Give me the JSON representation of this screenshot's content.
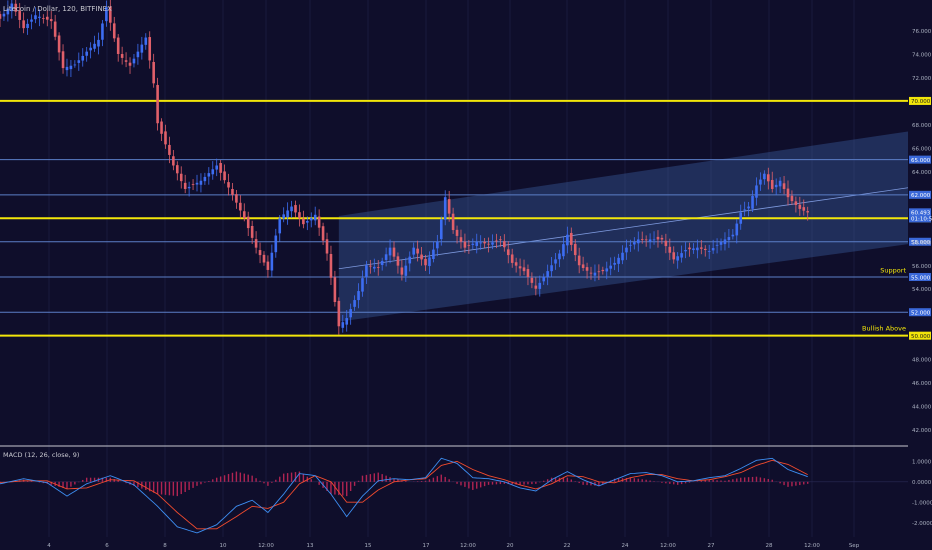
{
  "symbol_title": "Litecoin / Dollar, 120, BITFINEX",
  "colors": {
    "background": "#0f0e2b",
    "up": "#3d6df2",
    "down": "#e0606a",
    "hline_yellow": "#f2e60a",
    "hline_blue": "#5b7ec7",
    "channel_fill": "#3a5a9c",
    "macd_line": "#3d8ef2",
    "signal_line": "#f24b2e",
    "histogram": "#b02452"
  },
  "chart_data": [
    {
      "type": "candlestick",
      "title": "Litecoin / Dollar, 120, BITFINEX",
      "ylim": [
        40.6,
        78.6
      ],
      "price_ticks": [
        "76.000",
        "74.000",
        "72.000",
        "68.000",
        "66.000",
        "64.000",
        "58.000",
        "56.000",
        "54.000",
        "48.000",
        "46.000",
        "44.000",
        "42.000"
      ],
      "x_ticks": [
        "4",
        "6",
        "8",
        "10",
        "12:00",
        "13",
        "15",
        "17",
        "12:00",
        "20",
        "22",
        "24",
        "12:00",
        "27",
        "28",
        "12:00",
        "Sep"
      ],
      "horizontal_levels": [
        {
          "price": 70.0,
          "label": "70.000",
          "color": "yellow",
          "width": 2
        },
        {
          "price": 65.0,
          "label": "65.000",
          "color": "blue",
          "width": 1
        },
        {
          "price": 62.0,
          "label": "62.000",
          "color": "blue",
          "width": 1
        },
        {
          "price": 60.0,
          "label": "60.000",
          "color": "yellow",
          "width": 2
        },
        {
          "price": 58.0,
          "label": "58.000",
          "color": "blue",
          "width": 1
        },
        {
          "price": 55.0,
          "label": "55.000",
          "color": "blue",
          "width": 1
        },
        {
          "price": 52.0,
          "label": "52.000",
          "color": "blue",
          "width": 1
        },
        {
          "price": 50.0,
          "label": "50.000",
          "color": "yellow",
          "width": 2
        }
      ],
      "price_badges": [
        {
          "label": "60.493",
          "price": 60.51
        },
        {
          "label": "01:10:56",
          "price": 59.99
        }
      ],
      "annotations": [
        {
          "text": "Support",
          "price": 55.2
        },
        {
          "text": "Bullish Above",
          "price": 50.25
        }
      ],
      "channel": {
        "start_index": 86,
        "start_low": 51.2,
        "start_high": 60.2,
        "end_low": 57.8,
        "end_high": 67.4
      },
      "channel_midline": {
        "start_index": 86,
        "start_price": 55.7,
        "end_price": 62.6
      },
      "anchors": [
        [
          0,
          77.0
        ],
        [
          3,
          78.3
        ],
        [
          6,
          76.2
        ],
        [
          9,
          77.3
        ],
        [
          13,
          76.8
        ],
        [
          16,
          72.8
        ],
        [
          19,
          73.1
        ],
        [
          22,
          74.2
        ],
        [
          25,
          75.2
        ],
        [
          27,
          78.0
        ],
        [
          30,
          74.0
        ],
        [
          33,
          73.0
        ],
        [
          37,
          75.4
        ],
        [
          39,
          71.5
        ],
        [
          40,
          68.1
        ],
        [
          44,
          64.5
        ],
        [
          47,
          62.5
        ],
        [
          51,
          63.2
        ],
        [
          55,
          64.5
        ],
        [
          59,
          62.0
        ],
        [
          62,
          60.0
        ],
        [
          65,
          57.5
        ],
        [
          68,
          55.6
        ],
        [
          71,
          60.0
        ],
        [
          74,
          61.0
        ],
        [
          77,
          59.5
        ],
        [
          80,
          60.3
        ],
        [
          83,
          57.0
        ],
        [
          86,
          50.8
        ],
        [
          88,
          51.5
        ],
        [
          91,
          53.8
        ],
        [
          93,
          56.0
        ],
        [
          96,
          55.8
        ],
        [
          99,
          57.5
        ],
        [
          102,
          55.2
        ],
        [
          105,
          57.5
        ],
        [
          108,
          56.0
        ],
        [
          111,
          58.0
        ],
        [
          113,
          61.8
        ],
        [
          115,
          59.0
        ],
        [
          118,
          57.5
        ],
        [
          121,
          58.0
        ],
        [
          124,
          57.8
        ],
        [
          127,
          58.2
        ],
        [
          130,
          56.2
        ],
        [
          133,
          55.5
        ],
        [
          136,
          54.0
        ],
        [
          139,
          55.5
        ],
        [
          142,
          57.0
        ],
        [
          144,
          58.6
        ],
        [
          147,
          56.0
        ],
        [
          150,
          55.3
        ],
        [
          153,
          55.5
        ],
        [
          156,
          56.2
        ],
        [
          159,
          57.5
        ],
        [
          162,
          58.2
        ],
        [
          165,
          58.2
        ],
        [
          168,
          58.2
        ],
        [
          171,
          56.5
        ],
        [
          174,
          57.3
        ],
        [
          177,
          57.5
        ],
        [
          180,
          57.2
        ],
        [
          183,
          58.0
        ],
        [
          186,
          58.6
        ],
        [
          188,
          60.5
        ],
        [
          190,
          61.0
        ],
        [
          192,
          62.8
        ],
        [
          194,
          63.8
        ],
        [
          196,
          62.5
        ],
        [
          198,
          63.2
        ],
        [
          200,
          61.8
        ],
        [
          203,
          60.8
        ],
        [
          205,
          60.5
        ]
      ]
    },
    {
      "type": "line",
      "title": "MACD (12, 26, close, 9)",
      "ylim": [
        -2.7,
        1.75
      ],
      "y_ticks": [
        "1.0000",
        "-1.0000",
        "-2.0000"
      ],
      "zero_label": "0.0000",
      "series": [
        {
          "name": "MACD",
          "anchors": [
            [
              0,
              -0.1
            ],
            [
              6,
              0.15
            ],
            [
              12,
              -0.05
            ],
            [
              17,
              -0.7
            ],
            [
              22,
              -0.1
            ],
            [
              28,
              0.3
            ],
            [
              34,
              -0.15
            ],
            [
              40,
              -1.2
            ],
            [
              45,
              -2.2
            ],
            [
              50,
              -2.5
            ],
            [
              55,
              -2.1
            ],
            [
              60,
              -1.2
            ],
            [
              64,
              -0.9
            ],
            [
              68,
              -1.5
            ],
            [
              72,
              -0.6
            ],
            [
              76,
              0.4
            ],
            [
              80,
              0.3
            ],
            [
              84,
              -0.6
            ],
            [
              88,
              -1.7
            ],
            [
              92,
              -0.7
            ],
            [
              96,
              0.05
            ],
            [
              100,
              0.15
            ],
            [
              104,
              0.1
            ],
            [
              108,
              0.2
            ],
            [
              112,
              1.15
            ],
            [
              116,
              0.9
            ],
            [
              120,
              0.2
            ],
            [
              124,
              0.15
            ],
            [
              128,
              0.0
            ],
            [
              132,
              -0.3
            ],
            [
              136,
              -0.45
            ],
            [
              140,
              0.1
            ],
            [
              144,
              0.5
            ],
            [
              148,
              0.1
            ],
            [
              152,
              -0.2
            ],
            [
              156,
              0.1
            ],
            [
              160,
              0.4
            ],
            [
              164,
              0.45
            ],
            [
              168,
              0.3
            ],
            [
              172,
              0.0
            ],
            [
              176,
              0.05
            ],
            [
              180,
              0.2
            ],
            [
              184,
              0.3
            ],
            [
              188,
              0.65
            ],
            [
              192,
              1.05
            ],
            [
              196,
              1.15
            ],
            [
              200,
              0.6
            ],
            [
              205,
              0.25
            ]
          ]
        },
        {
          "name": "Signal",
          "anchors": [
            [
              0,
              -0.05
            ],
            [
              6,
              0.05
            ],
            [
              12,
              0.05
            ],
            [
              17,
              -0.35
            ],
            [
              22,
              -0.3
            ],
            [
              28,
              0.1
            ],
            [
              34,
              0.05
            ],
            [
              40,
              -0.6
            ],
            [
              45,
              -1.5
            ],
            [
              50,
              -2.3
            ],
            [
              55,
              -2.3
            ],
            [
              60,
              -1.7
            ],
            [
              64,
              -1.2
            ],
            [
              68,
              -1.3
            ],
            [
              72,
              -1.0
            ],
            [
              76,
              -0.1
            ],
            [
              80,
              0.3
            ],
            [
              84,
              0.0
            ],
            [
              88,
              -1.0
            ],
            [
              92,
              -1.0
            ],
            [
              96,
              -0.4
            ],
            [
              100,
              0.0
            ],
            [
              104,
              0.1
            ],
            [
              108,
              0.15
            ],
            [
              112,
              0.8
            ],
            [
              116,
              1.0
            ],
            [
              120,
              0.6
            ],
            [
              124,
              0.3
            ],
            [
              128,
              0.1
            ],
            [
              132,
              -0.15
            ],
            [
              136,
              -0.35
            ],
            [
              140,
              -0.1
            ],
            [
              144,
              0.3
            ],
            [
              148,
              0.25
            ],
            [
              152,
              0.0
            ],
            [
              156,
              -0.05
            ],
            [
              160,
              0.2
            ],
            [
              164,
              0.35
            ],
            [
              168,
              0.35
            ],
            [
              172,
              0.15
            ],
            [
              176,
              0.05
            ],
            [
              180,
              0.1
            ],
            [
              184,
              0.25
            ],
            [
              188,
              0.45
            ],
            [
              192,
              0.8
            ],
            [
              196,
              1.05
            ],
            [
              200,
              0.85
            ],
            [
              205,
              0.35
            ]
          ]
        }
      ]
    }
  ]
}
